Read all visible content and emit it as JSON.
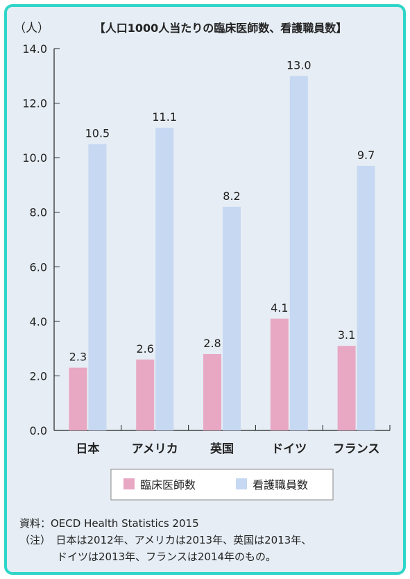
{
  "chart_data": {
    "type": "bar",
    "title": "【人口1000人当たりの臨床医師数、看護職員数】",
    "ylabel": "（人）",
    "xlabel": "",
    "ylim": [
      0,
      14
    ],
    "yticks": [
      "0.0",
      "2.0",
      "4.0",
      "6.0",
      "8.0",
      "10.0",
      "12.0",
      "14.0"
    ],
    "grid": false,
    "legend_position": "bottom",
    "categories": [
      "日本",
      "アメリカ",
      "英国",
      "ドイツ",
      "フランス"
    ],
    "series": [
      {
        "name": "臨床医師数",
        "color": "#e8a8c4",
        "values": [
          2.3,
          2.6,
          2.8,
          4.1,
          3.1
        ],
        "labels": [
          "2.3",
          "2.6",
          "2.8",
          "4.1",
          "3.1"
        ]
      },
      {
        "name": "看護職員数",
        "color": "#c6d8f2",
        "values": [
          10.5,
          11.1,
          8.2,
          13.0,
          9.7
        ],
        "labels": [
          "10.5",
          "11.1",
          "8.2",
          "13.0",
          "9.7"
        ]
      }
    ]
  },
  "source": "資料：OECD Health Statistics 2015",
  "note_line1": "（注）　日本は2012年、アメリカは2013年、英国は2013年、",
  "note_line2": "ドイツは2013年、フランスは2014年のもの。"
}
